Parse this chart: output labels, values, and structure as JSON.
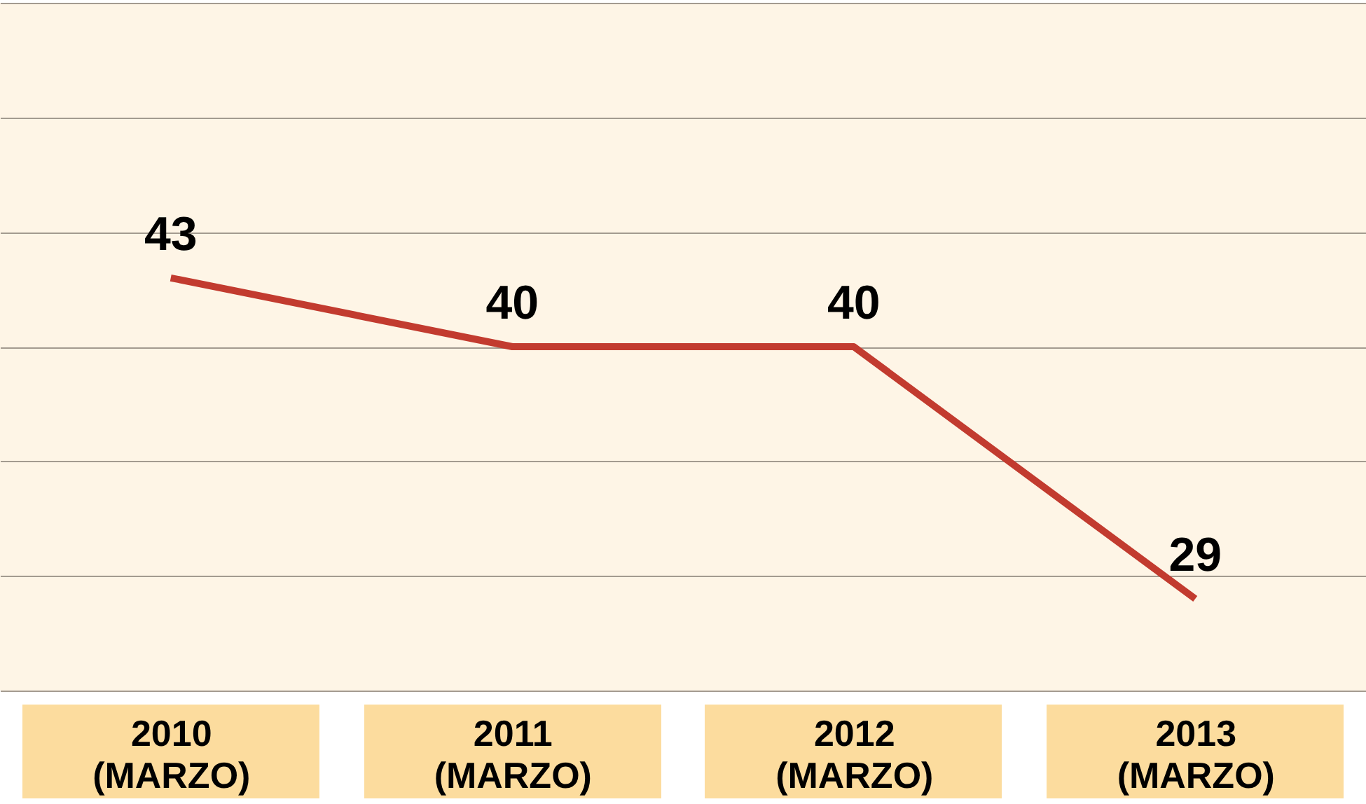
{
  "chart_data": {
    "type": "line",
    "categories": [
      "2010 (MARZO)",
      "2011 (MARZO)",
      "2012 (MARZO)",
      "2013 (MARZO)"
    ],
    "values": [
      43,
      40,
      40,
      29
    ],
    "color": "#c23b2f",
    "data_labels": true,
    "grid": "y",
    "tick_labels": "x",
    "ylim": [
      25,
      55
    ],
    "yticks": [
      {
        "value": 25,
        "label": null
      },
      {
        "value": 30,
        "label": null
      },
      {
        "value": 35,
        "label": null
      },
      {
        "value": 40,
        "label": null
      },
      {
        "value": 45,
        "label": null
      },
      {
        "value": 50,
        "label": null
      },
      {
        "value": 55,
        "label": null
      }
    ]
  }
}
